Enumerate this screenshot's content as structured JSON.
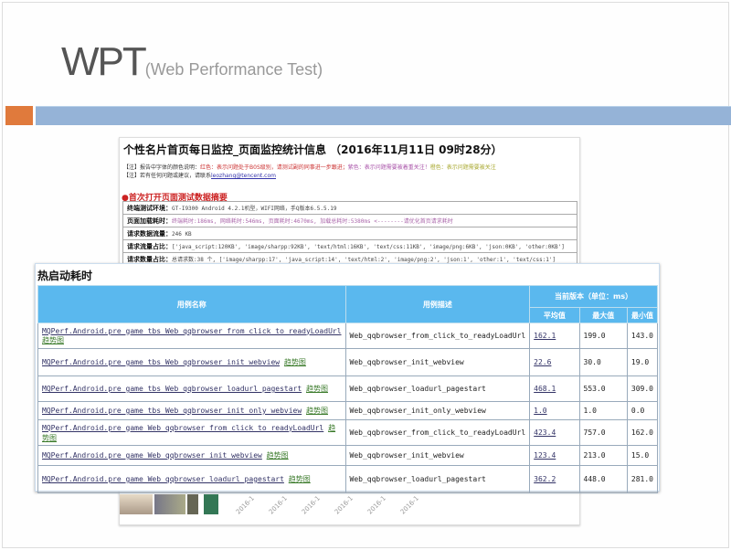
{
  "slide": {
    "title": "WPT",
    "subtitle": "(Web Performance Test)",
    "colors": {
      "orange": "#e07a3c",
      "blue": "#95b3d7",
      "table_header": "#5ab8ee"
    }
  },
  "report": {
    "title": "个性名片首页每日监控_页面监控统计信息 （2016年11月11日 09时28分）",
    "note1_prefix": "【注】报告中字体的颜色说明：",
    "note1_red": "红色：表示问题处于B0S级别，请测试副的同事进一步跟进；",
    "note1_purple": "紫色：表示问题需要被着重关注！",
    "note1_yellow": "橙色：表示问题需要被关注",
    "note2_prefix": "【注】若有任何问题或建议，请联系",
    "note2_link": "leozhang@tencent.com",
    "section": "●首次打开页面测试数据摘要",
    "rows": [
      {
        "label": "终端测试环境：",
        "value": "GT-I9300 Android 4.2.1机型，WIFI网络，手Q版本6.5.5.19"
      },
      {
        "label": "页面加载耗时：",
        "value": "终端耗时:186ms, 网络耗时:546ms, 页面耗时:4670ms, 加载总耗时:5380ms <--------请优化首页请求耗时"
      },
      {
        "label": "请求数据流量：",
        "value": "246 KB"
      },
      {
        "label": "请求流量占比：",
        "value": "['java_script:120KB', 'image/sharpp:92KB', 'text/html:16KB', 'text/css:11KB', 'image/png:6KB', 'json:0KB', 'other:0KB']"
      },
      {
        "label": "请求数量占比：",
        "value": "总请求数:38 个, ['image/sharpp:17', 'java_script:14', 'text/html:2', 'image/png:2', 'json:1', 'other:1', 'text/css:1']"
      }
    ],
    "dates": [
      "2016-1",
      "2016-1",
      "2016-1",
      "2016-1",
      "2016-1",
      "2016-1"
    ]
  },
  "hot_start": {
    "heading": "热启动耗时",
    "headers": {
      "case_name": "用例名称",
      "case_desc": "用例描述",
      "group": "当前版本（单位：ms）",
      "avg": "平均值",
      "max": "最大值",
      "min": "最小值"
    },
    "trend_label": "趋势图",
    "rows": [
      {
        "name": "MQPerf.Android.pre_game_tbs_Web_qqbrowser_from_click_to_readyLoadUrl",
        "desc": "Web_qqbrowser_from_click_to_readyLoadUrl",
        "avg": "162.1",
        "max": "199.0",
        "min": "143.0"
      },
      {
        "name": "MQPerf.Android.pre_game_tbs_Web_qqbrowser_init_webview",
        "desc": "Web_qqbrowser_init_webview",
        "avg": "22.6",
        "max": "30.0",
        "min": "19.0"
      },
      {
        "name": "MQPerf.Android.pre_game_tbs_Web_qqbrowser_loadurl_pagestart",
        "desc": "Web_qqbrowser_loadurl_pagestart",
        "avg": "468.1",
        "max": "553.0",
        "min": "309.0"
      },
      {
        "name": "MQPerf.Android.pre_game_tbs_Web_qqbrowser_init_only_webview",
        "desc": "Web_qqbrowser_init_only_webview",
        "avg": "1.0",
        "max": "1.0",
        "min": "0.0"
      },
      {
        "name": "MQPerf.Android.pre_game_Web_qqbrowser_from_click_to_readyLoadUrl",
        "desc": "Web_qqbrowser_from_click_to_readyLoadUrl",
        "avg": "423.4",
        "max": "757.0",
        "min": "162.0"
      },
      {
        "name": "MQPerf.Android.pre_game_Web_qqbrowser_init_webview",
        "desc": "Web_qqbrowser_init_webview",
        "avg": "123.4",
        "max": "213.0",
        "min": "15.0"
      },
      {
        "name": "MQPerf.Android.pre_game_Web_qqbrowser_loadurl_pagestart",
        "desc": "Web_qqbrowser_loadurl_pagestart",
        "avg": "362.2",
        "max": "448.0",
        "min": "281.0"
      }
    ]
  }
}
